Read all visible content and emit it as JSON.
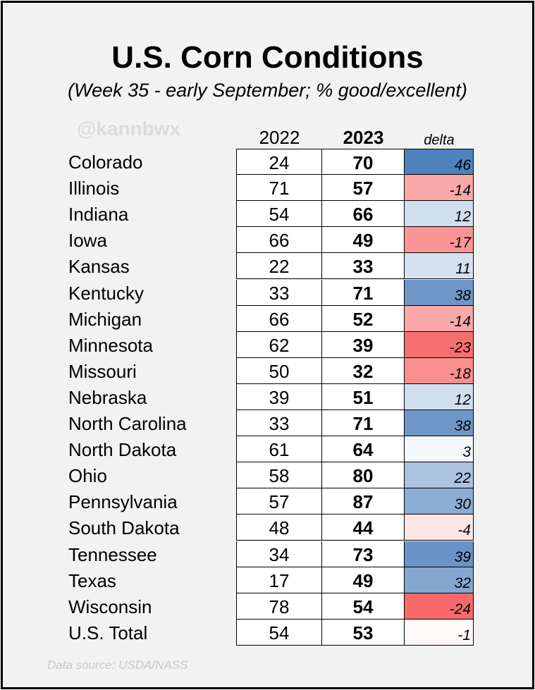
{
  "title": "U.S. Corn Conditions",
  "subtitle": "(Week 35 - early September; % good/excellent)",
  "watermark": "@kannbwx",
  "source": "Data source: USDA/NASS",
  "colors": {
    "positive": "#4f81bd",
    "negative": "#f8696b",
    "neutral": "#ffffff"
  },
  "chart_data": {
    "type": "table",
    "columns": [
      "2022",
      "2023",
      "delta"
    ],
    "rows": [
      {
        "state": "Colorado",
        "y2022": 24,
        "y2023": 70,
        "delta": 46
      },
      {
        "state": "Illinois",
        "y2022": 71,
        "y2023": 57,
        "delta": -14
      },
      {
        "state": "Indiana",
        "y2022": 54,
        "y2023": 66,
        "delta": 12
      },
      {
        "state": "Iowa",
        "y2022": 66,
        "y2023": 49,
        "delta": -17
      },
      {
        "state": "Kansas",
        "y2022": 22,
        "y2023": 33,
        "delta": 11
      },
      {
        "state": "Kentucky",
        "y2022": 33,
        "y2023": 71,
        "delta": 38
      },
      {
        "state": "Michigan",
        "y2022": 66,
        "y2023": 52,
        "delta": -14
      },
      {
        "state": "Minnesota",
        "y2022": 62,
        "y2023": 39,
        "delta": -23
      },
      {
        "state": "Missouri",
        "y2022": 50,
        "y2023": 32,
        "delta": -18
      },
      {
        "state": "Nebraska",
        "y2022": 39,
        "y2023": 51,
        "delta": 12
      },
      {
        "state": "North Carolina",
        "y2022": 33,
        "y2023": 71,
        "delta": 38
      },
      {
        "state": "North Dakota",
        "y2022": 61,
        "y2023": 64,
        "delta": 3
      },
      {
        "state": "Ohio",
        "y2022": 58,
        "y2023": 80,
        "delta": 22
      },
      {
        "state": "Pennsylvania",
        "y2022": 57,
        "y2023": 87,
        "delta": 30
      },
      {
        "state": "South Dakota",
        "y2022": 48,
        "y2023": 44,
        "delta": -4
      },
      {
        "state": "Tennessee",
        "y2022": 34,
        "y2023": 73,
        "delta": 39
      },
      {
        "state": "Texas",
        "y2022": 17,
        "y2023": 49,
        "delta": 32
      },
      {
        "state": "Wisconsin",
        "y2022": 78,
        "y2023": 54,
        "delta": -24
      },
      {
        "state": "U.S. Total",
        "y2022": 54,
        "y2023": 53,
        "delta": -1
      }
    ]
  }
}
